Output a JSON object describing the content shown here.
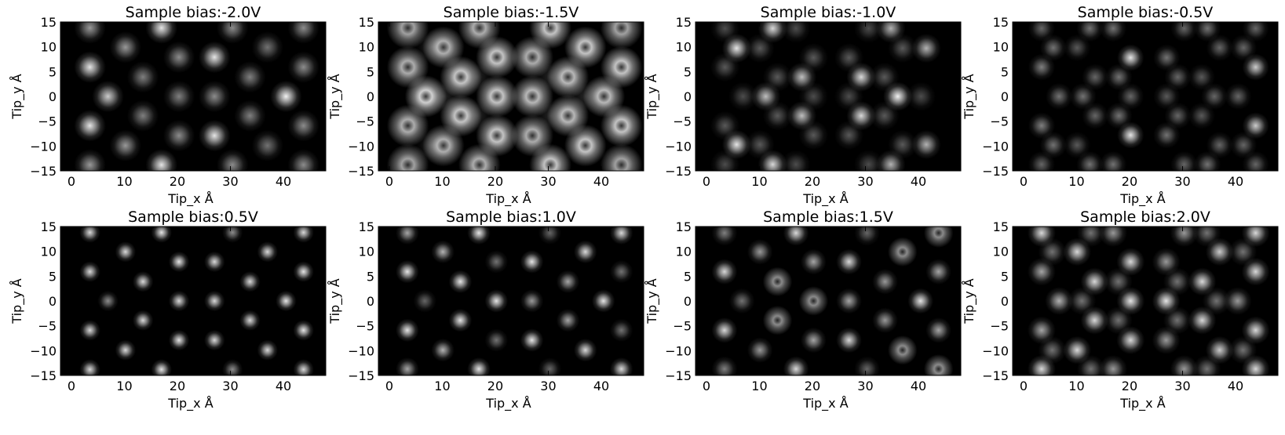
{
  "figure": {
    "background": "#ffffff",
    "image_background": "#000000",
    "spot_color": "#ffffff"
  },
  "chart_data": [
    {
      "type": "heatmap",
      "title": "Sample bias:-2.0V",
      "xlabel": "Tip_x Å",
      "ylabel": "Tip_y Å",
      "xlim": [
        -2.07,
        48
      ],
      "ylim": [
        -15,
        15
      ],
      "xticks": [
        0,
        10,
        20,
        30,
        40
      ],
      "xtick_labels": [
        "0",
        "10",
        "20",
        "30",
        "40"
      ],
      "yticks": [
        15,
        10,
        5,
        0,
        -5,
        -10,
        -15
      ],
      "ytick_labels": [
        "15",
        "10",
        "5",
        "0",
        "−5",
        "−10",
        "−15"
      ],
      "sigma": 1.3,
      "mirror_y": true,
      "spots": [
        [
          3.5,
          13.8,
          0.6,
          "spot"
        ],
        [
          17,
          13.8,
          0.9,
          "spot"
        ],
        [
          30.4,
          13.8,
          0.55,
          "spot"
        ],
        [
          43.8,
          13.8,
          0.55,
          "spot"
        ],
        [
          10.2,
          9.9,
          0.6,
          "spot"
        ],
        [
          37,
          9.9,
          0.45,
          "spot"
        ],
        [
          20.3,
          7.9,
          0.55,
          "spot"
        ],
        [
          27,
          7.9,
          0.9,
          "spot"
        ],
        [
          3.5,
          5.9,
          0.9,
          "spot"
        ],
        [
          43.8,
          5.9,
          0.55,
          "spot"
        ],
        [
          13.5,
          3.9,
          0.5,
          "spot"
        ],
        [
          33.7,
          3.9,
          0.5,
          "spot"
        ],
        [
          6.9,
          0,
          0.8,
          "spot"
        ],
        [
          20.3,
          0,
          0.5,
          "spot"
        ],
        [
          27,
          0,
          0.55,
          "spot"
        ],
        [
          40.5,
          0,
          0.95,
          "spot"
        ]
      ]
    },
    {
      "type": "heatmap",
      "title": "Sample bias:-1.5V",
      "xlabel": "Tip_x Å",
      "ylabel": "Tip_y Å",
      "xlim": [
        -2.07,
        48
      ],
      "ylim": [
        -15,
        15
      ],
      "xticks": [
        0,
        10,
        20,
        30,
        40
      ],
      "xtick_labels": [
        "0",
        "10",
        "20",
        "30",
        "40"
      ],
      "yticks": [
        15,
        10,
        5,
        0,
        -5,
        -10,
        -15
      ],
      "ytick_labels": [
        "15",
        "10",
        "5",
        "0",
        "−5",
        "−10",
        "−15"
      ],
      "sigma": 1.5,
      "mirror_y": true,
      "spots": [
        [
          3.5,
          13.8,
          0.7,
          "ring"
        ],
        [
          17,
          13.8,
          0.75,
          "ring"
        ],
        [
          30.4,
          13.8,
          0.85,
          "ring"
        ],
        [
          43.8,
          13.8,
          0.7,
          "ring"
        ],
        [
          10.2,
          9.9,
          0.75,
          "ring"
        ],
        [
          37,
          9.9,
          0.85,
          "ring"
        ],
        [
          20.3,
          7.9,
          0.85,
          "ring"
        ],
        [
          27,
          7.9,
          0.75,
          "ring"
        ],
        [
          3.5,
          5.9,
          0.75,
          "ring"
        ],
        [
          43.8,
          5.9,
          0.85,
          "ring"
        ],
        [
          13.5,
          3.9,
          0.85,
          "ring"
        ],
        [
          33.7,
          3.9,
          0.8,
          "ring"
        ],
        [
          6.9,
          0,
          0.9,
          "ring"
        ],
        [
          20.3,
          0,
          0.85,
          "ring"
        ],
        [
          27,
          0,
          0.8,
          "ring"
        ],
        [
          40.5,
          0,
          0.8,
          "ring"
        ],
        [
          8,
          9.9,
          0.15,
          "spot"
        ],
        [
          16.5,
          3.9,
          0.15,
          "spot"
        ],
        [
          30.5,
          3.9,
          0.15,
          "spot"
        ],
        [
          10.2,
          0,
          0.15,
          "spot"
        ],
        [
          37,
          0,
          0.15,
          "spot"
        ]
      ]
    },
    {
      "type": "heatmap",
      "title": "Sample bias:-1.0V",
      "xlabel": "Tip_x Å",
      "ylabel": "Tip_y Å",
      "xlim": [
        -2.07,
        48
      ],
      "ylim": [
        -15,
        15
      ],
      "xticks": [
        0,
        10,
        20,
        30,
        40
      ],
      "xtick_labels": [
        "0",
        "10",
        "20",
        "30",
        "40"
      ],
      "yticks": [
        15,
        10,
        5,
        0,
        -5,
        -10,
        -15
      ],
      "ytick_labels": [
        "15",
        "10",
        "5",
        "0",
        "−5",
        "−10",
        "−15"
      ],
      "sigma": 1.2,
      "mirror_y": true,
      "spots": [
        [
          3.5,
          13.7,
          0.3,
          "spot"
        ],
        [
          12.5,
          13.7,
          0.85,
          "spot"
        ],
        [
          16.9,
          13.7,
          0.3,
          "spot"
        ],
        [
          30.6,
          13.7,
          0.3,
          "spot"
        ],
        [
          34.8,
          13.7,
          0.7,
          "spot"
        ],
        [
          5.7,
          9.7,
          0.9,
          "spot"
        ],
        [
          10.1,
          9.7,
          0.35,
          "spot"
        ],
        [
          37,
          9.7,
          0.35,
          "spot"
        ],
        [
          41.5,
          9.7,
          0.7,
          "spot"
        ],
        [
          20.2,
          7.8,
          0.35,
          "spot"
        ],
        [
          26.9,
          7.8,
          0.35,
          "spot"
        ],
        [
          3.5,
          5.9,
          0.35,
          "spot"
        ],
        [
          13.4,
          3.9,
          0.35,
          "spot"
        ],
        [
          18,
          3.9,
          0.75,
          "spot"
        ],
        [
          29.2,
          3.9,
          0.85,
          "spot"
        ],
        [
          33.6,
          3.9,
          0.35,
          "spot"
        ],
        [
          6.9,
          0,
          0.3,
          "spot"
        ],
        [
          11.2,
          0,
          0.75,
          "spot"
        ],
        [
          20.2,
          0,
          0.3,
          "spot"
        ],
        [
          26.9,
          0,
          0.3,
          "spot"
        ],
        [
          36.1,
          0,
          0.95,
          "spot"
        ],
        [
          40.5,
          0,
          0.3,
          "spot"
        ]
      ]
    },
    {
      "type": "heatmap",
      "title": "Sample bias:-0.5V",
      "xlabel": "Tip_x Å",
      "ylabel": "Tip_y Å",
      "xlim": [
        -2.07,
        48
      ],
      "ylim": [
        -15,
        15
      ],
      "xticks": [
        0,
        10,
        20,
        30,
        40
      ],
      "xtick_labels": [
        "0",
        "10",
        "20",
        "30",
        "40"
      ],
      "yticks": [
        15,
        10,
        5,
        0,
        -5,
        -10,
        -15
      ],
      "ytick_labels": [
        "15",
        "10",
        "5",
        "0",
        "−5",
        "−10",
        "−15"
      ],
      "sigma": 1.1,
      "mirror_y": true,
      "spots": [
        [
          3.4,
          13.7,
          0.4,
          "spot"
        ],
        [
          12.5,
          13.7,
          0.45,
          "spot"
        ],
        [
          16.9,
          13.7,
          0.45,
          "spot"
        ],
        [
          30.3,
          13.7,
          0.4,
          "spot"
        ],
        [
          34.7,
          13.7,
          0.45,
          "spot"
        ],
        [
          43.8,
          13.7,
          0.4,
          "spot"
        ],
        [
          5.6,
          9.8,
          0.45,
          "spot"
        ],
        [
          10.1,
          9.8,
          0.35,
          "spot"
        ],
        [
          37,
          9.8,
          0.4,
          "spot"
        ],
        [
          41.5,
          9.8,
          0.4,
          "spot"
        ],
        [
          20.2,
          7.8,
          0.9,
          "spot"
        ],
        [
          27,
          7.8,
          0.45,
          "spot"
        ],
        [
          3.4,
          5.9,
          0.5,
          "spot"
        ],
        [
          43.8,
          5.9,
          0.8,
          "spot"
        ],
        [
          13.5,
          3.9,
          0.4,
          "spot"
        ],
        [
          18,
          3.9,
          0.45,
          "spot"
        ],
        [
          29.1,
          3.9,
          0.4,
          "spot"
        ],
        [
          33.6,
          3.9,
          0.35,
          "spot"
        ],
        [
          6.7,
          0,
          0.45,
          "spot"
        ],
        [
          11.2,
          0,
          0.45,
          "spot"
        ],
        [
          20.2,
          0,
          0.4,
          "spot"
        ],
        [
          27,
          0,
          0.35,
          "spot"
        ],
        [
          36,
          0,
          0.4,
          "spot"
        ],
        [
          40.5,
          0,
          0.4,
          "spot"
        ]
      ]
    },
    {
      "type": "heatmap",
      "title": "Sample bias:0.5V",
      "xlabel": "Tip_x Å",
      "ylabel": "Tip_y Å",
      "xlim": [
        -2.07,
        48
      ],
      "ylim": [
        -15,
        15
      ],
      "xticks": [
        0,
        10,
        20,
        30,
        40
      ],
      "xtick_labels": [
        "0",
        "10",
        "20",
        "30",
        "40"
      ],
      "yticks": [
        15,
        10,
        5,
        0,
        -5,
        -10,
        -15
      ],
      "ytick_labels": [
        "15",
        "10",
        "5",
        "0",
        "−5",
        "−10",
        "−15"
      ],
      "sigma": 0.85,
      "mirror_y": true,
      "spots": [
        [
          3.5,
          13.8,
          0.85,
          "spot"
        ],
        [
          17,
          13.8,
          0.9,
          "spot"
        ],
        [
          30.4,
          13.8,
          0.55,
          "spot"
        ],
        [
          43.8,
          13.8,
          0.85,
          "spot"
        ],
        [
          10.2,
          9.9,
          0.85,
          "spot"
        ],
        [
          37,
          9.9,
          0.85,
          "spot"
        ],
        [
          20.3,
          7.9,
          0.9,
          "spot"
        ],
        [
          27,
          7.9,
          0.85,
          "spot"
        ],
        [
          3.5,
          5.9,
          0.85,
          "spot"
        ],
        [
          43.8,
          5.9,
          0.9,
          "spot"
        ],
        [
          13.5,
          3.9,
          0.85,
          "spot"
        ],
        [
          33.7,
          3.9,
          0.85,
          "spot"
        ],
        [
          6.9,
          0,
          0.55,
          "spot"
        ],
        [
          20.3,
          0,
          0.85,
          "spot"
        ],
        [
          27,
          0,
          0.85,
          "spot"
        ],
        [
          40.5,
          0,
          0.9,
          "spot"
        ]
      ]
    },
    {
      "type": "heatmap",
      "title": "Sample bias:1.0V",
      "xlabel": "Tip_x Å",
      "ylabel": "Tip_y Å",
      "xlim": [
        -2.07,
        48
      ],
      "ylim": [
        -15,
        15
      ],
      "xticks": [
        0,
        10,
        20,
        30,
        40
      ],
      "xtick_labels": [
        "0",
        "10",
        "20",
        "30",
        "40"
      ],
      "yticks": [
        15,
        10,
        5,
        0,
        -5,
        -10,
        -15
      ],
      "ytick_labels": [
        "15",
        "10",
        "5",
        "0",
        "−5",
        "−10",
        "−15"
      ],
      "sigma": 0.95,
      "mirror_y": true,
      "spots": [
        [
          3.4,
          13.7,
          0.65,
          "spot"
        ],
        [
          16.9,
          13.7,
          0.9,
          "spot"
        ],
        [
          30.3,
          13.7,
          0.4,
          "spot"
        ],
        [
          43.8,
          13.7,
          0.85,
          "spot"
        ],
        [
          10.1,
          9.9,
          0.7,
          "spot"
        ],
        [
          37,
          9.9,
          0.85,
          "spot"
        ],
        [
          20.2,
          7.9,
          0.45,
          "spot"
        ],
        [
          26.9,
          7.9,
          0.9,
          "spot"
        ],
        [
          3.4,
          5.9,
          0.9,
          "spot"
        ],
        [
          43.8,
          5.9,
          0.45,
          "spot"
        ],
        [
          13.4,
          3.9,
          0.9,
          "spot"
        ],
        [
          33.7,
          3.9,
          0.65,
          "spot"
        ],
        [
          6.7,
          0,
          0.4,
          "spot"
        ],
        [
          20.2,
          0,
          0.9,
          "spot"
        ],
        [
          26.9,
          0,
          0.6,
          "spot"
        ],
        [
          40.4,
          0,
          0.9,
          "spot"
        ]
      ]
    },
    {
      "type": "heatmap",
      "title": "Sample bias:1.5V",
      "xlabel": "Tip_x Å",
      "ylabel": "Tip_y Å",
      "xlim": [
        -2.07,
        48
      ],
      "ylim": [
        -15,
        15
      ],
      "xticks": [
        0,
        10,
        20,
        30,
        40
      ],
      "xtick_labels": [
        "0",
        "10",
        "20",
        "30",
        "40"
      ],
      "yticks": [
        15,
        10,
        5,
        0,
        -5,
        -10,
        -15
      ],
      "ytick_labels": [
        "15",
        "10",
        "5",
        "0",
        "−5",
        "−10",
        "−15"
      ],
      "sigma": 1.05,
      "mirror_y": true,
      "spots": [
        [
          3.4,
          13.7,
          0.5,
          "spot"
        ],
        [
          16.9,
          13.7,
          0.85,
          "spot"
        ],
        [
          30.3,
          13.7,
          0.4,
          "spot"
        ],
        [
          43.8,
          13.7,
          0.6,
          "ring"
        ],
        [
          10.1,
          9.9,
          0.6,
          "spot"
        ],
        [
          37,
          9.9,
          0.6,
          "ring"
        ],
        [
          20.2,
          7.9,
          0.65,
          "spot"
        ],
        [
          26.9,
          7.9,
          0.85,
          "spot"
        ],
        [
          3.4,
          5.9,
          0.85,
          "spot"
        ],
        [
          43.8,
          5.9,
          0.65,
          "spot"
        ],
        [
          13.4,
          3.9,
          0.6,
          "ring"
        ],
        [
          33.7,
          3.9,
          0.6,
          "spot"
        ],
        [
          6.7,
          0,
          0.45,
          "spot"
        ],
        [
          20.2,
          0,
          0.6,
          "ring"
        ],
        [
          26.9,
          0,
          0.65,
          "spot"
        ],
        [
          40.4,
          0,
          0.9,
          "spot"
        ]
      ]
    },
    {
      "type": "heatmap",
      "title": "Sample bias:2.0V",
      "xlabel": "Tip_x Å",
      "ylabel": "Tip_y Å",
      "xlim": [
        -2.07,
        48
      ],
      "ylim": [
        -15,
        15
      ],
      "xticks": [
        0,
        10,
        20,
        30,
        40
      ],
      "xtick_labels": [
        "0",
        "10",
        "20",
        "30",
        "40"
      ],
      "yticks": [
        15,
        10,
        5,
        0,
        -5,
        -10,
        -15
      ],
      "ytick_labels": [
        "15",
        "10",
        "5",
        "0",
        "−5",
        "−10",
        "−15"
      ],
      "sigma": 1.15,
      "mirror_y": true,
      "spots": [
        [
          3.4,
          13.7,
          0.85,
          "spot"
        ],
        [
          12.7,
          13.7,
          0.45,
          "spot"
        ],
        [
          16.9,
          13.7,
          0.6,
          "spot"
        ],
        [
          30.3,
          13.7,
          0.6,
          "spot"
        ],
        [
          34.6,
          13.7,
          0.45,
          "spot"
        ],
        [
          43.8,
          13.7,
          0.85,
          "spot"
        ],
        [
          5.4,
          9.9,
          0.45,
          "spot"
        ],
        [
          10.1,
          9.9,
          0.85,
          "spot"
        ],
        [
          37,
          9.9,
          0.8,
          "spot"
        ],
        [
          41.4,
          9.9,
          0.45,
          "spot"
        ],
        [
          20.2,
          7.9,
          0.85,
          "spot"
        ],
        [
          26.9,
          7.9,
          0.6,
          "spot"
        ],
        [
          3.4,
          5.9,
          0.65,
          "spot"
        ],
        [
          43.8,
          5.9,
          0.85,
          "spot"
        ],
        [
          13.4,
          3.9,
          0.85,
          "spot"
        ],
        [
          17.9,
          3.9,
          0.45,
          "spot"
        ],
        [
          29,
          3.9,
          0.45,
          "spot"
        ],
        [
          33.7,
          3.9,
          0.85,
          "spot"
        ],
        [
          6.7,
          0,
          0.7,
          "spot"
        ],
        [
          11,
          0,
          0.45,
          "spot"
        ],
        [
          20.2,
          0,
          0.9,
          "spot"
        ],
        [
          26.9,
          0,
          0.9,
          "spot"
        ],
        [
          36.4,
          0,
          0.45,
          "spot"
        ],
        [
          40.4,
          0,
          0.6,
          "spot"
        ]
      ]
    }
  ]
}
